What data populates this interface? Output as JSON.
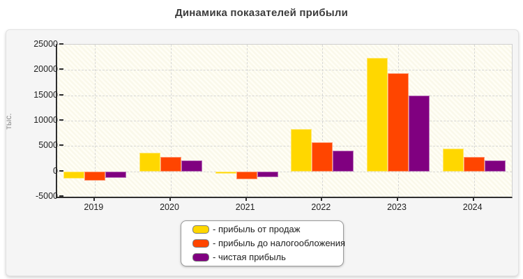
{
  "title": "Динамика показателей прибыли",
  "legend": {
    "prefix": "- ",
    "position": "bottom-center"
  },
  "chart_data": {
    "type": "bar",
    "title": "Динамика показателей прибыли",
    "xlabel": "",
    "ylabel": "тыс.",
    "categories": [
      "2019",
      "2020",
      "2021",
      "2022",
      "2023",
      "2024"
    ],
    "series": [
      {
        "name": "прибыль от продаж",
        "color": "#FFD700",
        "values": [
          -1400,
          3700,
          -500,
          8300,
          22400,
          4500
        ]
      },
      {
        "name": "прибыль до налогообложения",
        "color": "#FF4500",
        "values": [
          -1800,
          2800,
          -1500,
          5800,
          19300,
          2800
        ]
      },
      {
        "name": "чистая прибыль",
        "color": "#800080",
        "values": [
          -1300,
          2200,
          -1200,
          4100,
          15000,
          2100
        ]
      }
    ],
    "ylim": [
      -5000,
      25000
    ],
    "yticks": [
      25000,
      20000,
      15000,
      10000,
      5000,
      0,
      -5000
    ],
    "grid": "dashed",
    "legend_position": "bottom-center"
  }
}
